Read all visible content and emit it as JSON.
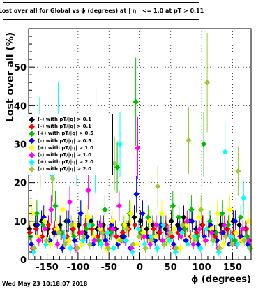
{
  "title": "Lost over all for Global vs ϕ (degrees) at | η | <= 1.0 at pT > 0.11",
  "footer": "Wed May 23 10:18:07 2018",
  "chart_data": {
    "type": "scatter",
    "title": "Lost over all for Global vs ϕ (degrees) at | η | <= 1.0 at pT > 0.11",
    "xlabel": "ϕ (degrees)",
    "ylabel": "Lost over all (%)",
    "xlim": [
      -180,
      180
    ],
    "ylim": [
      0,
      60
    ],
    "xticks": [
      -150,
      -100,
      -50,
      0,
      50,
      100,
      150
    ],
    "yticks": [
      10,
      20,
      30,
      40,
      50
    ],
    "grid": true,
    "legend_position": "left-middle",
    "marker": "diamond",
    "series": [
      {
        "name": "(-) with pT/|q| > 0.1",
        "color": "#000000",
        "x": [
          -175,
          -165,
          -155,
          -145,
          -135,
          -125,
          -115,
          -105,
          -95,
          -85,
          -75,
          -65,
          -55,
          -45,
          -35,
          -25,
          -15,
          -5,
          5,
          15,
          25,
          35,
          45,
          55,
          65,
          75,
          85,
          95,
          105,
          115,
          125,
          135,
          145,
          155,
          165,
          175
        ],
        "y": [
          8,
          9,
          10,
          8,
          7,
          9,
          10,
          8,
          9,
          7,
          10,
          8,
          9,
          7,
          8,
          6,
          9,
          11,
          10,
          8,
          9,
          7,
          8,
          10,
          9,
          11,
          10,
          8,
          9,
          8,
          7,
          9,
          8,
          10,
          9,
          8
        ]
      },
      {
        "name": "(-) with pT/|q| > 0.1",
        "color": "#ff0000",
        "x": [
          -175,
          -165,
          -155,
          -145,
          -135,
          -125,
          -115,
          -105,
          -95,
          -85,
          -75,
          -65,
          -55,
          -45,
          -35,
          -25,
          -15,
          -5,
          5,
          15,
          25,
          35,
          45,
          55,
          65,
          75,
          85,
          95,
          105,
          115,
          125,
          135,
          145,
          155,
          165,
          175
        ],
        "y": [
          7,
          8,
          6,
          9,
          8,
          7,
          6,
          8,
          7,
          9,
          8,
          6,
          7,
          8,
          6,
          7,
          8,
          9,
          7,
          6,
          8,
          7,
          9,
          6,
          7,
          8,
          6,
          7,
          9,
          8,
          6,
          7,
          8,
          7,
          6,
          8
        ]
      },
      {
        "name": "(+) with pT/|q| > 0.5",
        "color": "#00c000",
        "x": [
          -175,
          -165,
          -155,
          -145,
          -135,
          -125,
          -115,
          -105,
          -95,
          -85,
          -75,
          -65,
          -55,
          -45,
          -35,
          -25,
          -15,
          -5,
          5,
          15,
          25,
          35,
          45,
          55,
          65,
          75,
          85,
          95,
          105,
          115,
          125,
          135,
          145,
          155,
          165,
          175
        ],
        "y": [
          6,
          12,
          9,
          5,
          14,
          7,
          10,
          6,
          12,
          8,
          9,
          5,
          13,
          7,
          24,
          9,
          12,
          41,
          7,
          11,
          6,
          9,
          5,
          14,
          11,
          8,
          13,
          6,
          30,
          10,
          7,
          12,
          9,
          5,
          11,
          6
        ]
      },
      {
        "name": "(-) with pT/|q| > 0.5",
        "color": "#0000ff",
        "x": [
          -175,
          -165,
          -155,
          -145,
          -135,
          -125,
          -115,
          -105,
          -95,
          -85,
          -75,
          -65,
          -55,
          -45,
          -35,
          -25,
          -15,
          -5,
          5,
          15,
          25,
          35,
          45,
          55,
          65,
          75,
          85,
          95,
          105,
          115,
          125,
          135,
          145,
          155,
          165,
          175
        ],
        "y": [
          4,
          9,
          11,
          5,
          7,
          3,
          10,
          5,
          12,
          6,
          4,
          8,
          5,
          9,
          4,
          6,
          3,
          17,
          12,
          6,
          5,
          9,
          7,
          4,
          8,
          5,
          10,
          4,
          6,
          9,
          5,
          7,
          4,
          10,
          6,
          4
        ]
      },
      {
        "name": "(+) with pT/|q| > 1.0",
        "color": "#ffff00",
        "x": [
          -175,
          -165,
          -155,
          -145,
          -135,
          -125,
          -115,
          -105,
          -95,
          -85,
          -75,
          -65,
          -55,
          -45,
          -35,
          -25,
          -15,
          -5,
          5,
          15,
          25,
          35,
          45,
          55,
          65,
          75,
          85,
          95,
          105,
          115,
          125,
          135,
          145,
          155,
          165,
          175
        ],
        "y": [
          12,
          6,
          10,
          4,
          8,
          13,
          5,
          9,
          4,
          11,
          6,
          8,
          3,
          10,
          5,
          9,
          12,
          4,
          7,
          10,
          6,
          12,
          5,
          8,
          3,
          9,
          6,
          11,
          5,
          8,
          12,
          4,
          13,
          7,
          5,
          10
        ]
      },
      {
        "name": "(-) with pT/|q| > 1.0",
        "color": "#ff00ff",
        "x": [
          -175,
          -165,
          -155,
          -145,
          -135,
          -125,
          -115,
          -105,
          -95,
          -85,
          -75,
          -65,
          -55,
          -45,
          -35,
          -25,
          -15,
          -5,
          5,
          15,
          25,
          35,
          45,
          55,
          65,
          75,
          85,
          95,
          105,
          115,
          125,
          135,
          145,
          155,
          165,
          175
        ],
        "y": [
          3,
          5,
          8,
          13,
          4,
          6,
          15,
          3,
          7,
          18,
          5,
          9,
          4,
          8,
          14,
          5,
          3,
          29,
          6,
          4,
          9,
          5,
          7,
          3,
          6,
          10,
          4,
          8,
          5,
          7,
          3,
          9,
          6,
          4,
          8,
          5
        ]
      },
      {
        "name": "(+) with pT/|q| > 2.0",
        "color": "#00ffff",
        "x": [
          -175,
          -165,
          -155,
          -145,
          -135,
          -125,
          -115,
          -105,
          -95,
          -85,
          -75,
          -65,
          -55,
          -45,
          -35,
          -25,
          -15,
          -5,
          5,
          15,
          25,
          35,
          45,
          55,
          65,
          75,
          85,
          95,
          105,
          115,
          125,
          135,
          145,
          155,
          165,
          175
        ],
        "y": [
          2,
          33,
          4,
          22,
          36,
          6,
          3,
          27,
          5,
          9,
          24,
          4,
          7,
          3,
          30,
          5,
          2,
          8,
          4,
          6,
          3,
          9,
          5,
          2,
          7,
          4,
          6,
          3,
          8,
          5,
          2,
          28,
          6,
          4,
          16,
          3
        ]
      },
      {
        "name": "(-) with pT/|q| > 2.0",
        "color": "#99cc33",
        "x": [
          -175,
          -165,
          -155,
          -145,
          -135,
          -125,
          -115,
          -105,
          -95,
          -85,
          -75,
          -65,
          -55,
          -45,
          -35,
          -25,
          -15,
          -5,
          5,
          15,
          25,
          35,
          45,
          55,
          65,
          75,
          85,
          95,
          105,
          115,
          125,
          135,
          145,
          155,
          165,
          175
        ],
        "y": [
          3,
          26,
          5,
          21,
          7,
          4,
          9,
          3,
          6,
          4,
          35,
          7,
          3,
          25,
          5,
          8,
          4,
          6,
          3,
          5,
          19,
          4,
          7,
          3,
          9,
          31,
          5,
          13,
          46,
          5,
          3,
          6,
          4,
          23,
          5,
          3
        ]
      }
    ]
  }
}
